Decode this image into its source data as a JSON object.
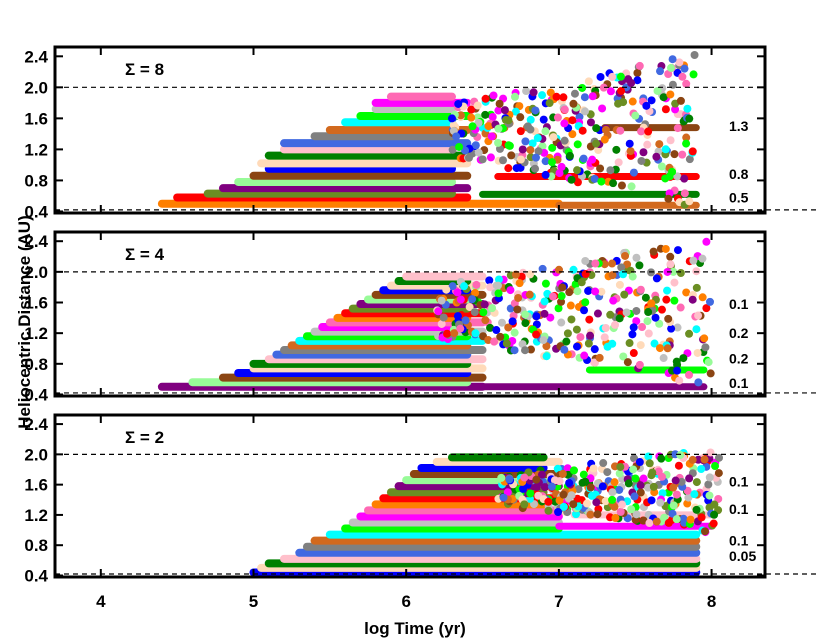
{
  "chart_data": {
    "type": "scatter",
    "ylabel": "Heliocentric Distance (AU)",
    "xlabel": "log Time (yr)",
    "xlim": [
      3.7,
      8.35
    ],
    "ylim": [
      0.38,
      2.52
    ],
    "x_ticks": [
      "4",
      "5",
      "6",
      "7",
      "8"
    ],
    "y_ticks": [
      "0.4",
      "0.8",
      "1.2",
      "1.6",
      "2.0",
      "2.4"
    ],
    "reference_lines_au": [
      0.42,
      2.0
    ],
    "point_colors": [
      "#ff7f00",
      "#00ffff",
      "#008000",
      "#800080",
      "#ff00ff",
      "#808080",
      "#0000ff",
      "#ff0000",
      "#00ff00",
      "#ffc0cb",
      "#98fb98",
      "#ff69b4",
      "#d2691e",
      "#ffdab9",
      "#6b8e23",
      "#c0c0c0",
      "#4169e1",
      "#8b4513"
    ],
    "panels": [
      {
        "label": "Σ = 8",
        "sigma": 8,
        "masses": [
          {
            "text": "1.3",
            "y": 1.5
          },
          {
            "text": "0.8",
            "y": 0.88
          },
          {
            "text": "0.5",
            "y": 0.58
          }
        ],
        "tracks": [
          {
            "x0": 4.4,
            "x1": 7.0,
            "y": 0.5
          },
          {
            "x0": 4.5,
            "x1": 6.4,
            "y": 0.58
          },
          {
            "x0": 4.7,
            "x1": 6.3,
            "y": 0.63
          },
          {
            "x0": 4.8,
            "x1": 6.4,
            "y": 0.7
          },
          {
            "x0": 4.9,
            "x1": 6.3,
            "y": 0.78
          },
          {
            "x0": 5.0,
            "x1": 6.4,
            "y": 0.86
          },
          {
            "x0": 5.1,
            "x1": 6.3,
            "y": 0.95
          },
          {
            "x0": 5.05,
            "x1": 6.4,
            "y": 1.02
          },
          {
            "x0": 5.1,
            "x1": 6.4,
            "y": 1.12
          },
          {
            "x0": 5.2,
            "x1": 6.3,
            "y": 1.2
          },
          {
            "x0": 5.2,
            "x1": 6.4,
            "y": 1.28
          },
          {
            "x0": 5.4,
            "x1": 6.3,
            "y": 1.37
          },
          {
            "x0": 5.5,
            "x1": 6.4,
            "y": 1.45
          },
          {
            "x0": 5.6,
            "x1": 6.3,
            "y": 1.55
          },
          {
            "x0": 5.7,
            "x1": 6.4,
            "y": 1.63
          },
          {
            "x0": 5.8,
            "x1": 6.3,
            "y": 1.72
          },
          {
            "x0": 5.8,
            "x1": 6.4,
            "y": 1.8
          },
          {
            "x0": 5.9,
            "x1": 6.3,
            "y": 1.88
          }
        ],
        "scatter_x": [
          6.3,
          7.9
        ],
        "scatter_y": [
          0.45,
          2.45
        ],
        "settled": [
          {
            "x0": 6.5,
            "x1": 7.9,
            "y": 0.62
          },
          {
            "x0": 6.6,
            "x1": 7.9,
            "y": 0.85
          },
          {
            "x0": 7.0,
            "x1": 7.9,
            "y": 0.48
          },
          {
            "x0": 7.3,
            "x1": 7.9,
            "y": 1.48
          }
        ]
      },
      {
        "label": "Σ = 4",
        "sigma": 4,
        "masses": [
          {
            "text": "0.1",
            "y": 1.58
          },
          {
            "text": "0.2",
            "y": 1.2
          },
          {
            "text": "0.2",
            "y": 0.87
          },
          {
            "text": "0.1",
            "y": 0.55
          }
        ],
        "tracks": [
          {
            "x0": 4.4,
            "x1": 6.5,
            "y": 0.5
          },
          {
            "x0": 4.6,
            "x1": 6.4,
            "y": 0.56
          },
          {
            "x0": 4.8,
            "x1": 6.5,
            "y": 0.62
          },
          {
            "x0": 4.9,
            "x1": 6.4,
            "y": 0.68
          },
          {
            "x0": 5.0,
            "x1": 6.5,
            "y": 0.74
          },
          {
            "x0": 5.0,
            "x1": 6.4,
            "y": 0.8
          },
          {
            "x0": 5.1,
            "x1": 6.5,
            "y": 0.86
          },
          {
            "x0": 5.15,
            "x1": 6.4,
            "y": 0.92
          },
          {
            "x0": 5.2,
            "x1": 6.5,
            "y": 0.98
          },
          {
            "x0": 5.25,
            "x1": 6.4,
            "y": 1.04
          },
          {
            "x0": 5.3,
            "x1": 6.5,
            "y": 1.1
          },
          {
            "x0": 5.35,
            "x1": 6.4,
            "y": 1.16
          },
          {
            "x0": 5.4,
            "x1": 6.5,
            "y": 1.22
          },
          {
            "x0": 5.45,
            "x1": 6.4,
            "y": 1.28
          },
          {
            "x0": 5.5,
            "x1": 6.5,
            "y": 1.34
          },
          {
            "x0": 5.55,
            "x1": 6.4,
            "y": 1.4
          },
          {
            "x0": 5.6,
            "x1": 6.5,
            "y": 1.46
          },
          {
            "x0": 5.65,
            "x1": 6.4,
            "y": 1.52
          },
          {
            "x0": 5.7,
            "x1": 6.5,
            "y": 1.58
          },
          {
            "x0": 5.75,
            "x1": 6.4,
            "y": 1.64
          },
          {
            "x0": 5.8,
            "x1": 6.5,
            "y": 1.7
          },
          {
            "x0": 5.85,
            "x1": 6.4,
            "y": 1.76
          },
          {
            "x0": 5.9,
            "x1": 6.5,
            "y": 1.82
          },
          {
            "x0": 5.95,
            "x1": 6.4,
            "y": 1.88
          },
          {
            "x0": 6.0,
            "x1": 6.5,
            "y": 1.94
          }
        ],
        "scatter_x": [
          6.2,
          8.0
        ],
        "scatter_y": [
          0.5,
          2.45
        ],
        "settled": [
          {
            "x0": 6.5,
            "x1": 7.95,
            "y": 0.5
          },
          {
            "x0": 7.2,
            "x1": 7.95,
            "y": 0.72
          }
        ]
      },
      {
        "label": "Σ = 2",
        "sigma": 2,
        "masses": [
          {
            "text": "0.1",
            "y": 1.64
          },
          {
            "text": "0.1",
            "y": 1.28
          },
          {
            "text": "0.1",
            "y": 0.86
          },
          {
            "text": "0.05",
            "y": 0.66
          }
        ],
        "tracks": [
          {
            "x0": 5.0,
            "x1": 7.9,
            "y": 0.44
          },
          {
            "x0": 5.05,
            "x1": 7.9,
            "y": 0.5
          },
          {
            "x0": 5.1,
            "x1": 7.9,
            "y": 0.56
          },
          {
            "x0": 5.2,
            "x1": 7.9,
            "y": 0.62
          },
          {
            "x0": 5.3,
            "x1": 7.9,
            "y": 0.7
          },
          {
            "x0": 5.35,
            "x1": 7.9,
            "y": 0.78
          },
          {
            "x0": 5.4,
            "x1": 7.9,
            "y": 0.86
          },
          {
            "x0": 5.5,
            "x1": 7.9,
            "y": 0.94
          },
          {
            "x0": 5.6,
            "x1": 7.0,
            "y": 1.02
          },
          {
            "x0": 5.65,
            "x1": 7.0,
            "y": 1.1
          },
          {
            "x0": 5.7,
            "x1": 7.0,
            "y": 1.18
          },
          {
            "x0": 5.75,
            "x1": 7.0,
            "y": 1.26
          },
          {
            "x0": 5.8,
            "x1": 6.9,
            "y": 1.34
          },
          {
            "x0": 5.85,
            "x1": 7.0,
            "y": 1.42
          },
          {
            "x0": 5.9,
            "x1": 6.9,
            "y": 1.5
          },
          {
            "x0": 5.95,
            "x1": 7.0,
            "y": 1.58
          },
          {
            "x0": 6.0,
            "x1": 6.9,
            "y": 1.66
          },
          {
            "x0": 6.05,
            "x1": 7.0,
            "y": 1.74
          },
          {
            "x0": 6.1,
            "x1": 6.9,
            "y": 1.82
          },
          {
            "x0": 6.2,
            "x1": 7.0,
            "y": 1.9
          },
          {
            "x0": 6.3,
            "x1": 6.9,
            "y": 1.96
          }
        ],
        "scatter_x": [
          6.6,
          8.05
        ],
        "scatter_y": [
          0.95,
          2.1
        ],
        "settled": [
          {
            "x0": 7.0,
            "x1": 8.0,
            "y": 1.05
          },
          {
            "x0": 7.1,
            "x1": 8.0,
            "y": 1.2
          }
        ]
      }
    ]
  }
}
